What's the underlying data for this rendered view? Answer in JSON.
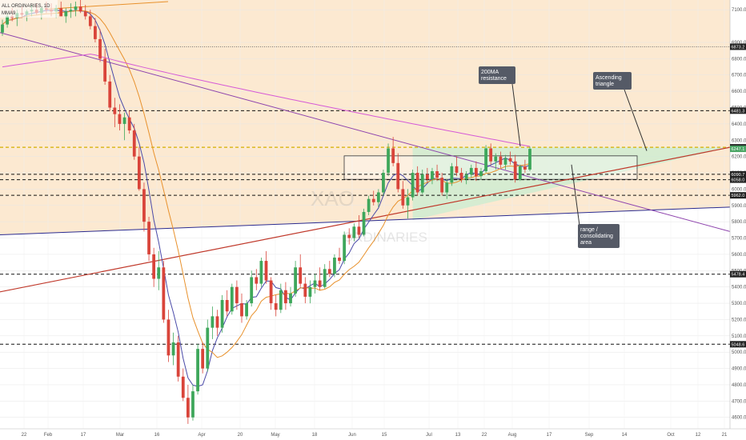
{
  "chart_data": {
    "type": "candlestick",
    "symbol_fragment": "ALL ORDINARIES, 1D",
    "legend_indicator": "MMA9",
    "watermark": {
      "main": "XAO",
      "sub": "ORDINARIES"
    },
    "ylim": [
      4530,
      7160
    ],
    "y_ticks": [
      7100,
      6900,
      6800,
      6700,
      6600,
      6500,
      6400,
      6300,
      6200,
      6100,
      6000,
      5900,
      5800,
      5700,
      5600,
      5500,
      5400,
      5300,
      5200,
      5100,
      5000,
      4900,
      4800,
      4700,
      4600
    ],
    "x_ticks": [
      "22",
      "Feb",
      "17",
      "Mar",
      "16",
      "Apr",
      "20",
      "May",
      "18",
      "Jun",
      "15",
      "Jul",
      "13",
      "22",
      "Aug",
      "17",
      "Sep",
      "14",
      "Oct",
      "12",
      "21"
    ],
    "levels": [
      {
        "value": 6873.2,
        "label": "6873.2",
        "style": "dotted"
      },
      {
        "value": 6481.3,
        "label": "6481.3",
        "style": "dashed"
      },
      {
        "value": 6256.5,
        "label": "6256.5",
        "style": "dashed-yellow"
      },
      {
        "value": 6247.1,
        "label": "6247.1",
        "style": "price"
      },
      {
        "value": 6090.7,
        "label": "6090.7",
        "style": "dashed"
      },
      {
        "value": 6058.0,
        "label": "6058.0",
        "style": "dashed"
      },
      {
        "value": 5962.0,
        "label": "5962.0",
        "style": "dashed"
      },
      {
        "value": 5478.4,
        "label": "5478.4",
        "style": "dashed"
      },
      {
        "value": 5048.6,
        "label": "5048.6",
        "style": "dashed"
      }
    ],
    "annotations": [
      {
        "name": "200ma-resistance",
        "lines": [
          "200MA",
          "resistance"
        ]
      },
      {
        "name": "ascending-triangle",
        "lines": [
          "Ascending",
          "triangle"
        ]
      },
      {
        "name": "range-consolidating",
        "lines": [
          "range /",
          "consolidating",
          "area"
        ]
      }
    ],
    "candles": [
      [
        6960,
        7040,
        6940,
        7010
      ],
      [
        7010,
        7080,
        6990,
        7060
      ],
      [
        7060,
        7110,
        7030,
        7050
      ],
      [
        7050,
        7100,
        7000,
        7080
      ],
      [
        7080,
        7120,
        7050,
        7070
      ],
      [
        7070,
        7100,
        7030,
        7090
      ],
      [
        7090,
        7130,
        7060,
        7100
      ],
      [
        7100,
        7140,
        7070,
        7080
      ],
      [
        7080,
        7120,
        7040,
        7110
      ],
      [
        7110,
        7150,
        7080,
        7100
      ],
      [
        7100,
        7140,
        7060,
        7090
      ],
      [
        7090,
        7130,
        7050,
        7110
      ],
      [
        7110,
        7150,
        7080,
        7060
      ],
      [
        7060,
        7110,
        7020,
        7090
      ],
      [
        7090,
        7140,
        7050,
        7100
      ],
      [
        7100,
        7150,
        7060,
        7120
      ],
      [
        7120,
        7160,
        7080,
        7090
      ],
      [
        7090,
        7130,
        7040,
        7060
      ],
      [
        7060,
        7100,
        6980,
        7000
      ],
      [
        7000,
        7050,
        6900,
        6920
      ],
      [
        6920,
        6980,
        6780,
        6800
      ],
      [
        6800,
        6860,
        6640,
        6660
      ],
      [
        6660,
        6700,
        6480,
        6500
      ],
      [
        6500,
        6560,
        6380,
        6460
      ],
      [
        6460,
        6520,
        6360,
        6400
      ],
      [
        6400,
        6470,
        6300,
        6440
      ],
      [
        6440,
        6480,
        6340,
        6360
      ],
      [
        6360,
        6400,
        6180,
        6200
      ],
      [
        6200,
        6260,
        5990,
        6000
      ],
      [
        6000,
        6040,
        5740,
        5800
      ],
      [
        5800,
        5830,
        5560,
        5600
      ],
      [
        5600,
        5640,
        5400,
        5450
      ],
      [
        5450,
        5620,
        5380,
        5520
      ],
      [
        5520,
        5560,
        5180,
        5200
      ],
      [
        5200,
        5260,
        4940,
        4980
      ],
      [
        4980,
        5120,
        4920,
        5060
      ],
      [
        5060,
        5100,
        4820,
        4850
      ],
      [
        4850,
        4900,
        4700,
        4720
      ],
      [
        4720,
        4800,
        4560,
        4600
      ],
      [
        4600,
        4800,
        4580,
        4760
      ],
      [
        4760,
        5050,
        4740,
        5020
      ],
      [
        5020,
        5060,
        4870,
        4900
      ],
      [
        4900,
        5200,
        4880,
        5150
      ],
      [
        5150,
        5280,
        5080,
        5220
      ],
      [
        5220,
        5260,
        5100,
        5150
      ],
      [
        5150,
        5350,
        5120,
        5320
      ],
      [
        5320,
        5380,
        5220,
        5250
      ],
      [
        5250,
        5420,
        5230,
        5400
      ],
      [
        5400,
        5440,
        5260,
        5300
      ],
      [
        5300,
        5360,
        5180,
        5220
      ],
      [
        5220,
        5320,
        5200,
        5300
      ],
      [
        5300,
        5500,
        5280,
        5460
      ],
      [
        5460,
        5510,
        5380,
        5420
      ],
      [
        5420,
        5580,
        5400,
        5560
      ],
      [
        5560,
        5620,
        5420,
        5440
      ],
      [
        5440,
        5460,
        5260,
        5300
      ],
      [
        5300,
        5350,
        5220,
        5260
      ],
      [
        5260,
        5420,
        5240,
        5380
      ],
      [
        5380,
        5430,
        5260,
        5300
      ],
      [
        5300,
        5400,
        5280,
        5360
      ],
      [
        5360,
        5560,
        5340,
        5520
      ],
      [
        5520,
        5600,
        5400,
        5420
      ],
      [
        5420,
        5460,
        5300,
        5340
      ],
      [
        5340,
        5440,
        5300,
        5400
      ],
      [
        5400,
        5480,
        5360,
        5440
      ],
      [
        5440,
        5520,
        5380,
        5400
      ],
      [
        5400,
        5540,
        5390,
        5510
      ],
      [
        5510,
        5560,
        5460,
        5480
      ],
      [
        5480,
        5600,
        5460,
        5580
      ],
      [
        5580,
        5640,
        5540,
        5560
      ],
      [
        5560,
        5740,
        5540,
        5720
      ],
      [
        5720,
        5760,
        5660,
        5700
      ],
      [
        5700,
        5790,
        5680,
        5770
      ],
      [
        5770,
        5840,
        5700,
        5720
      ],
      [
        5720,
        5880,
        5710,
        5860
      ],
      [
        5860,
        5960,
        5840,
        5940
      ],
      [
        5940,
        5990,
        5900,
        5920
      ],
      [
        5920,
        6000,
        5890,
        5980
      ],
      [
        5980,
        6120,
        5960,
        6100
      ],
      [
        6100,
        6280,
        6080,
        6250
      ],
      [
        6250,
        6320,
        6140,
        6160
      ],
      [
        6160,
        6220,
        5980,
        6000
      ],
      [
        6000,
        6050,
        5880,
        5900
      ],
      [
        5900,
        6000,
        5820,
        5950
      ],
      [
        5950,
        6120,
        5930,
        6100
      ],
      [
        6100,
        6140,
        5960,
        5980
      ],
      [
        5980,
        6120,
        5970,
        6090
      ],
      [
        6090,
        6130,
        6040,
        6060
      ],
      [
        6060,
        6130,
        6030,
        6110
      ],
      [
        6110,
        6150,
        6050,
        6070
      ],
      [
        6070,
        6100,
        5960,
        5980
      ],
      [
        5980,
        6060,
        5940,
        6040
      ],
      [
        6040,
        6160,
        6020,
        6140
      ],
      [
        6140,
        6200,
        6080,
        6100
      ],
      [
        6100,
        6130,
        6040,
        6060
      ],
      [
        6060,
        6110,
        6030,
        6090
      ],
      [
        6090,
        6150,
        6070,
        6130
      ],
      [
        6130,
        6170,
        6050,
        6080
      ],
      [
        6080,
        6130,
        6060,
        6110
      ],
      [
        6110,
        6270,
        6100,
        6250
      ],
      [
        6250,
        6280,
        6150,
        6170
      ],
      [
        6170,
        6220,
        6120,
        6200
      ],
      [
        6200,
        6230,
        6130,
        6150
      ],
      [
        6150,
        6210,
        6120,
        6190
      ],
      [
        6190,
        6230,
        6150,
        6170
      ],
      [
        6170,
        6210,
        6040,
        6060
      ],
      [
        6060,
        6150,
        6050,
        6140
      ],
      [
        6140,
        6180,
        6100,
        6120
      ],
      [
        6120,
        6260,
        6110,
        6247
      ]
    ]
  }
}
